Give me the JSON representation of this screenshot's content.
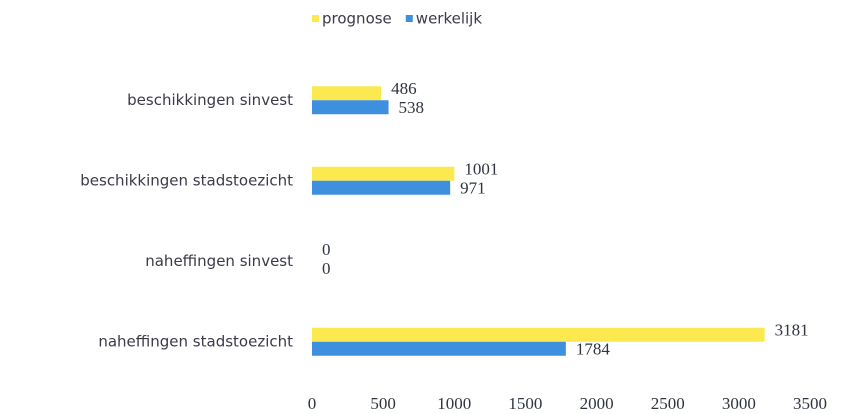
{
  "chart_data": {
    "type": "barh",
    "categories": [
      "beschikkingen sinvest",
      "beschikkingen stadstoezicht",
      "naheffingen sinvest",
      "naheffingen stadstoezicht"
    ],
    "series": [
      {
        "name": "prognose",
        "color": "#fce94f",
        "values": [
          486,
          1001,
          0,
          3181
        ]
      },
      {
        "name": "werkelijk",
        "color": "#3f8fdf",
        "values": [
          538,
          971,
          0,
          1784
        ]
      }
    ],
    "xlim": [
      0,
      3500
    ],
    "xticks": [
      0,
      500,
      1000,
      1500,
      2000,
      2500,
      3000,
      3500
    ],
    "legend": "top",
    "grid": false,
    "data_labels": true
  }
}
